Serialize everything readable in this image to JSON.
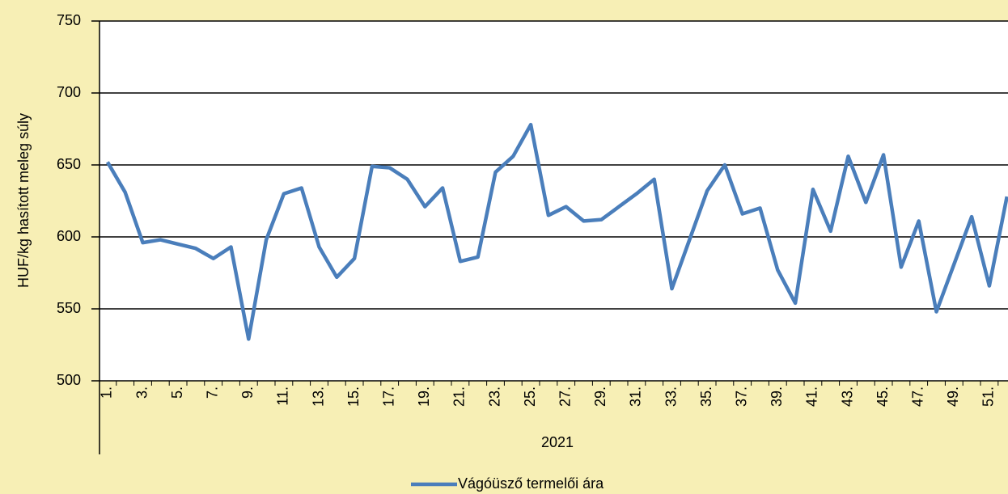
{
  "chart_data": {
    "type": "line",
    "y_label": "HUF/kg hasított meleg súly",
    "x_label": "2021",
    "categories": [
      "1.",
      null,
      "3.",
      null,
      "5.",
      null,
      "7.",
      null,
      "9.",
      null,
      "11.",
      null,
      "13.",
      null,
      "15.",
      null,
      "17.",
      null,
      "19.",
      null,
      "21.",
      null,
      "23.",
      null,
      "25.",
      null,
      "27.",
      null,
      "29.",
      null,
      "31.",
      null,
      "33.",
      null,
      "35.",
      null,
      "37.",
      null,
      "39.",
      null,
      "41.",
      null,
      "43.",
      null,
      "45.",
      null,
      "47.",
      null,
      "49.",
      null,
      "51.",
      null
    ],
    "series": [
      {
        "name": "Vágóüsző termelői ára",
        "color": "#4a7ebb",
        "values": [
          652,
          631,
          596,
          598,
          595,
          592,
          585,
          593,
          529,
          598,
          630,
          634,
          593,
          572,
          585,
          649,
          648,
          640,
          621,
          634,
          583,
          586,
          645,
          656,
          678,
          615,
          621,
          611,
          612,
          621,
          630,
          640,
          564,
          598,
          632,
          650,
          616,
          620,
          577,
          554,
          633,
          604,
          656,
          624,
          657,
          579,
          611,
          548,
          581,
          614,
          566,
          628
        ]
      }
    ],
    "ylim": [
      500,
      750
    ],
    "yticks": [
      500,
      550,
      600,
      650,
      700,
      750
    ],
    "grid": true,
    "legend": "bottom"
  }
}
